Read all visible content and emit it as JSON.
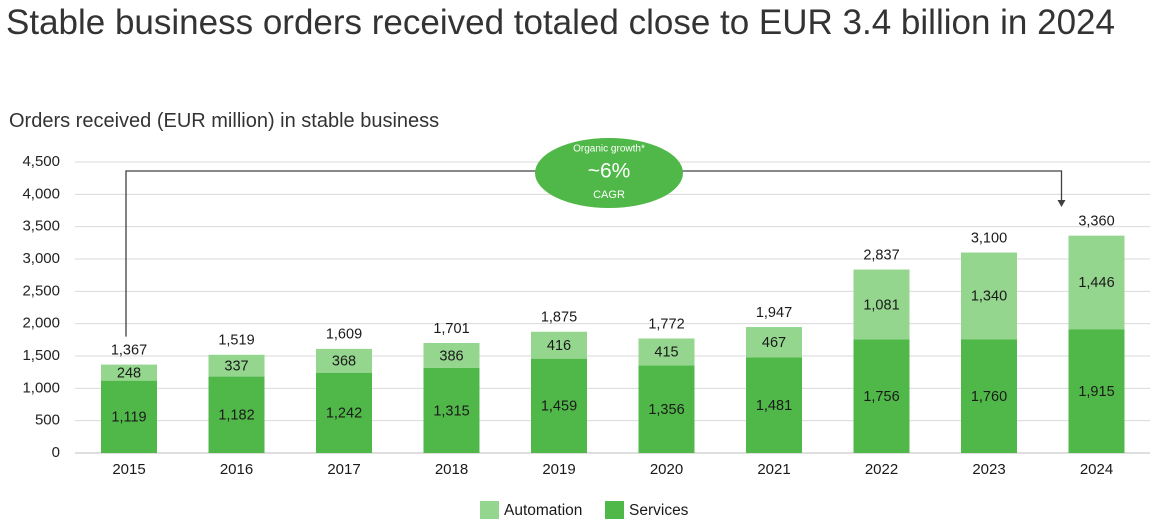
{
  "page": {
    "title": "Stable business orders received totaled close to EUR 3.4 billion in 2024"
  },
  "chart_data": {
    "type": "bar",
    "stacked": true,
    "title": "Orders received (EUR million) in stable business",
    "categories": [
      "2015",
      "2016",
      "2017",
      "2018",
      "2019",
      "2020",
      "2021",
      "2022",
      "2023",
      "2024"
    ],
    "series": [
      {
        "name": "Services",
        "color": "#50b848",
        "values": [
          1119,
          1182,
          1242,
          1315,
          1459,
          1356,
          1481,
          1756,
          1760,
          1915
        ]
      },
      {
        "name": "Automation",
        "color": "#94d68e",
        "values": [
          248,
          337,
          368,
          386,
          416,
          415,
          467,
          1081,
          1340,
          1446
        ]
      }
    ],
    "totals": [
      1367,
      1519,
      1609,
      1701,
      1875,
      1772,
      1947,
      2837,
      3100,
      3360
    ],
    "ylim": [
      0,
      4500
    ],
    "yticks": [
      0,
      500,
      1000,
      1500,
      2000,
      2500,
      3000,
      3500,
      4000,
      4500
    ],
    "grid": true,
    "legend": {
      "position": "bottom",
      "order": [
        "Automation",
        "Services"
      ]
    },
    "annotation": {
      "line1": "Organic growth*",
      "line2": "~6%",
      "line3": "CAGR",
      "color": "#50b848",
      "from": "2015",
      "to": "2024"
    }
  }
}
